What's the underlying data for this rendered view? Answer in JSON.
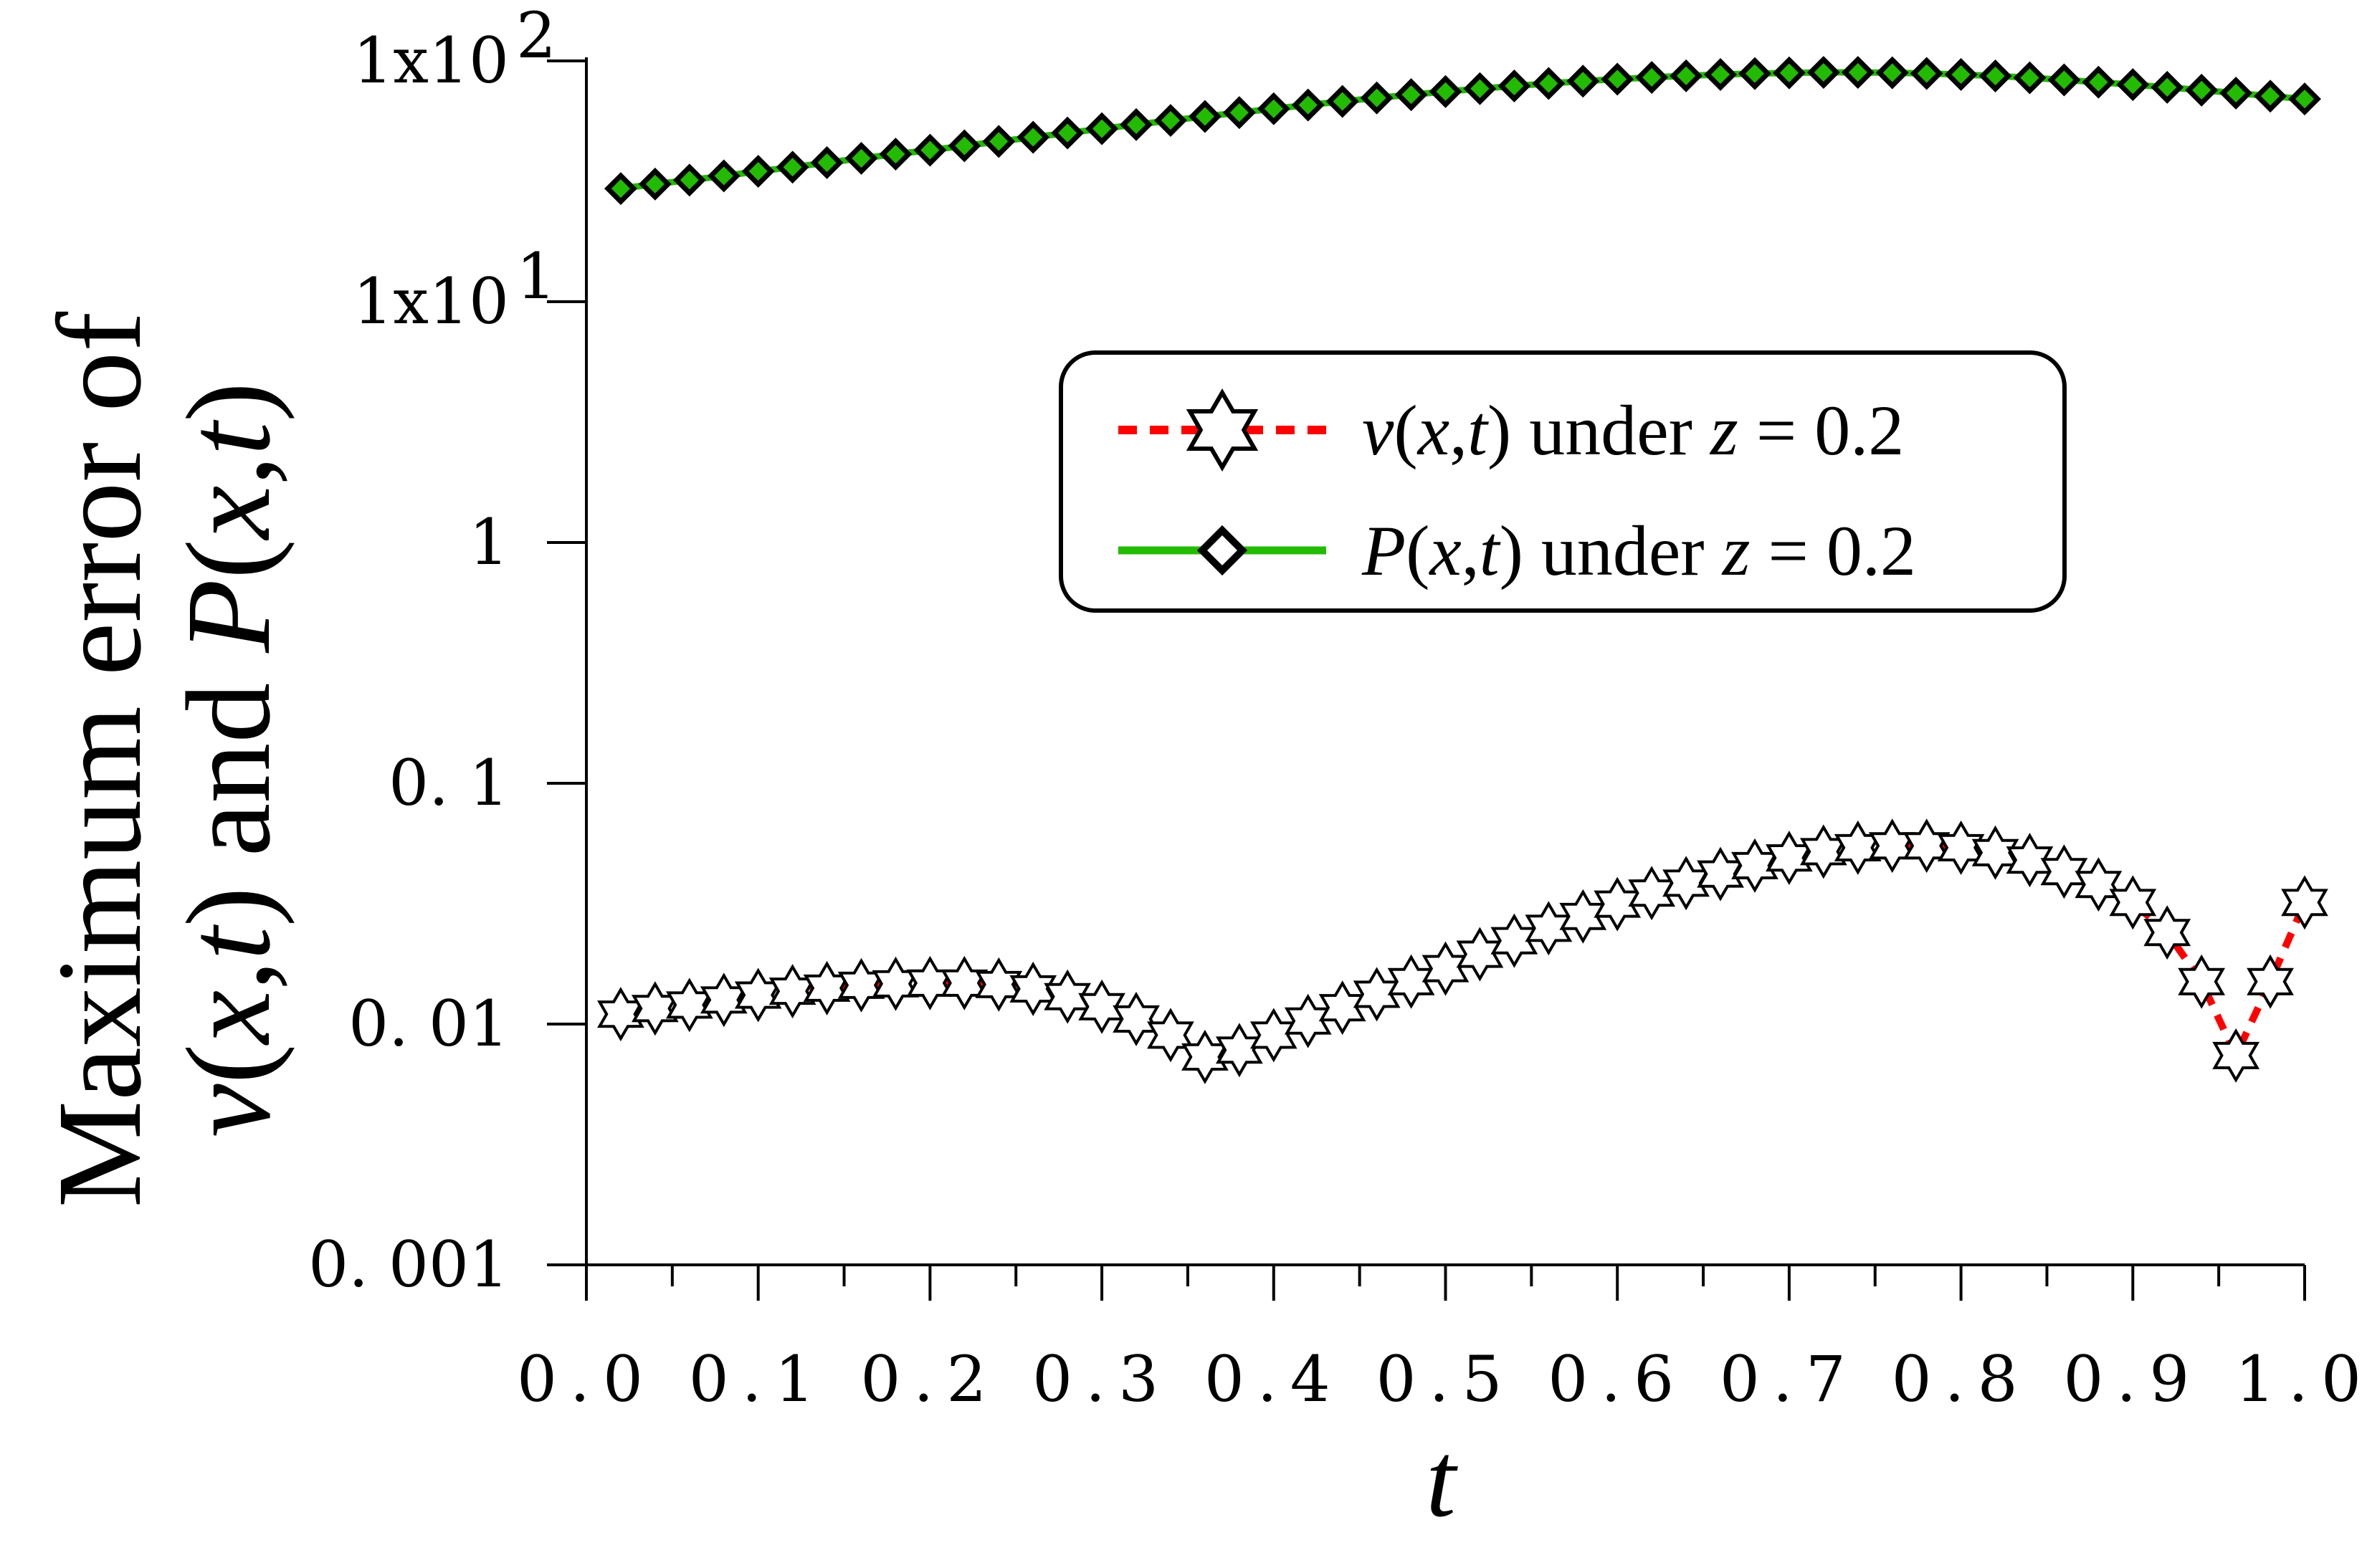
{
  "chart_data": {
    "type": "line",
    "title": "",
    "xlabel": "t",
    "ylabel_line1": "Maximum error of",
    "ylabel_line2_parts": [
      "v",
      "(",
      "x",
      ",",
      "t",
      ") and ",
      "P",
      "(",
      "x",
      ",",
      "t",
      ")"
    ],
    "yscale": "log",
    "xlim": [
      0.0,
      1.0
    ],
    "ylim": [
      0.001,
      100
    ],
    "x_ticks": [
      0.0,
      0.1,
      0.2,
      0.3,
      0.4,
      0.5,
      0.6,
      0.7,
      0.8,
      0.9,
      1.0
    ],
    "x_tick_labels": [
      "0.0",
      "0.1",
      "0.2",
      "0.3",
      "0.4",
      "0.5",
      "0.6",
      "0.7",
      "0.8",
      "0.9",
      "1.0"
    ],
    "y_ticks": [
      0.001,
      0.01,
      0.1,
      1,
      10,
      100
    ],
    "y_tick_labels": [
      {
        "text": "0. 001"
      },
      {
        "text": "0. 01"
      },
      {
        "text": "0. 1"
      },
      {
        "text": "1"
      },
      {
        "text": "1x10",
        "sup": "1"
      },
      {
        "text": "1x10",
        "sup": "2"
      }
    ],
    "legend_position": "center-right",
    "series": [
      {
        "name": "v(x,t) under z = 0.2",
        "legend_parts": [
          "v",
          "(",
          "x",
          ",",
          "t",
          ") under ",
          "z",
          " = 0.2"
        ],
        "color": "#ff0000",
        "line_style": "dashed",
        "marker": "star",
        "x": [
          0.02,
          0.04,
          0.06,
          0.08,
          0.1,
          0.12,
          0.14,
          0.16,
          0.18,
          0.2,
          0.22,
          0.24,
          0.26,
          0.28,
          0.3,
          0.32,
          0.34,
          0.36,
          0.38,
          0.4,
          0.42,
          0.44,
          0.46,
          0.48,
          0.5,
          0.52,
          0.54,
          0.56,
          0.58,
          0.6,
          0.62,
          0.64,
          0.66,
          0.68,
          0.7,
          0.72,
          0.74,
          0.76,
          0.78,
          0.8,
          0.82,
          0.84,
          0.86,
          0.88,
          0.9,
          0.92,
          0.94,
          0.96,
          0.98,
          1.0
        ],
        "y": [
          0.011,
          0.0116,
          0.012,
          0.0126,
          0.0132,
          0.0137,
          0.0141,
          0.0145,
          0.0147,
          0.0148,
          0.0148,
          0.0146,
          0.014,
          0.013,
          0.0118,
          0.0105,
          0.009,
          0.0073,
          0.0078,
          0.009,
          0.0103,
          0.0117,
          0.0133,
          0.015,
          0.017,
          0.0195,
          0.0222,
          0.025,
          0.028,
          0.0315,
          0.035,
          0.0385,
          0.042,
          0.0455,
          0.049,
          0.052,
          0.054,
          0.055,
          0.055,
          0.054,
          0.0515,
          0.048,
          0.043,
          0.038,
          0.032,
          0.024,
          0.015,
          0.0074,
          0.015,
          0.032
        ]
      },
      {
        "name": "P(x,t) under z = 0.2",
        "legend_parts": [
          "P",
          "(",
          "x",
          ",",
          "t",
          ") under ",
          "z",
          " = 0.2"
        ],
        "color": "#22bb00",
        "line_style": "solid",
        "marker": "diamond",
        "x": [
          0.02,
          0.04,
          0.06,
          0.08,
          0.1,
          0.12,
          0.14,
          0.16,
          0.18,
          0.2,
          0.22,
          0.24,
          0.26,
          0.28,
          0.3,
          0.32,
          0.34,
          0.36,
          0.38,
          0.4,
          0.42,
          0.44,
          0.46,
          0.48,
          0.5,
          0.52,
          0.54,
          0.56,
          0.58,
          0.6,
          0.62,
          0.64,
          0.66,
          0.68,
          0.7,
          0.72,
          0.74,
          0.76,
          0.78,
          0.8,
          0.82,
          0.84,
          0.86,
          0.88,
          0.9,
          0.92,
          0.94,
          0.96,
          0.98,
          1.0
        ],
        "y": [
          29.5,
          30.8,
          32.0,
          33.3,
          34.8,
          36.2,
          37.8,
          39.4,
          41.0,
          42.6,
          44.4,
          46.3,
          48.2,
          50.2,
          52.3,
          54.4,
          56.6,
          58.8,
          61.0,
          63.3,
          65.6,
          67.9,
          70.2,
          72.4,
          74.6,
          76.7,
          78.7,
          80.6,
          82.4,
          84.0,
          85.4,
          86.7,
          87.8,
          88.6,
          89.2,
          89.6,
          89.6,
          89.3,
          88.7,
          87.8,
          86.6,
          85.1,
          83.4,
          81.6,
          79.7,
          77.7,
          75.6,
          73.5,
          71.4,
          69.5
        ]
      }
    ]
  }
}
